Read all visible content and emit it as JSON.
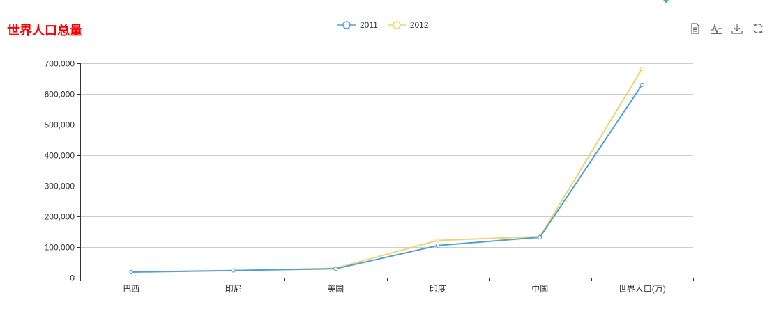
{
  "title": "世界人口总量",
  "legend": {
    "items": [
      {
        "name": "2011",
        "color": "#4aa3d8"
      },
      {
        "name": "2012",
        "color": "#f7d26a"
      }
    ]
  },
  "toolbox": {
    "icons": [
      "data-view-icon",
      "line-chart-icon",
      "save-image-icon",
      "restore-icon"
    ]
  },
  "chart_data": {
    "type": "line",
    "title": "世界人口总量",
    "categories": [
      "巴西",
      "印尼",
      "美国",
      "印度",
      "中国",
      "世界人口(万)"
    ],
    "series": [
      {
        "name": "2011",
        "color": "#4aa3d8",
        "values": [
          18203,
          23489,
          29034,
          104970,
          131744,
          630230
        ]
      },
      {
        "name": "2012",
        "color": "#f7d26a",
        "values": [
          19325,
          23438,
          31000,
          121594,
          134141,
          681807
        ]
      }
    ],
    "ylim": [
      0,
      700000
    ],
    "yticks": [
      0,
      100000,
      200000,
      300000,
      400000,
      500000,
      600000,
      700000
    ],
    "ytick_labels": [
      "0",
      "100,000",
      "200,000",
      "300,000",
      "400,000",
      "500,000",
      "600,000",
      "700,000"
    ],
    "grid": true,
    "legend_position": "top-center"
  }
}
